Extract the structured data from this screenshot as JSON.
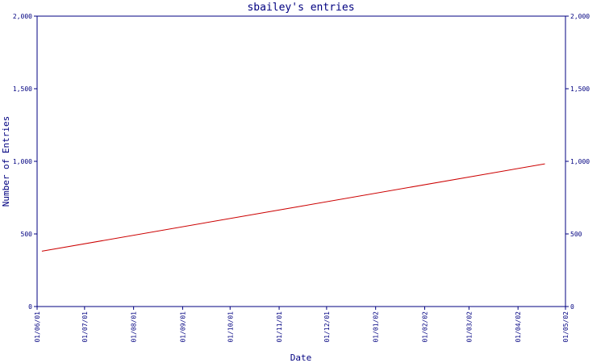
{
  "chart_data": {
    "type": "line",
    "title": "sbailey's entries",
    "xlabel": "Date",
    "ylabel": "Number of Entries",
    "x_ticks": [
      "01/06/01",
      "01/07/01",
      "01/08/01",
      "01/09/01",
      "01/10/01",
      "01/11/01",
      "01/12/01",
      "01/01/02",
      "01/02/02",
      "01/03/02",
      "01/04/02",
      "01/05/02"
    ],
    "y_ticks": [
      0,
      500,
      1000,
      1500,
      2000
    ],
    "y_tick_labels": [
      "0",
      "500",
      "1,000",
      "1,500",
      "2,000"
    ],
    "ylim": [
      0,
      2000
    ],
    "series": [
      {
        "color": "#cc0000",
        "points": [
          {
            "x": "2001-06-04",
            "y": 381
          },
          {
            "x": "2002-04-18",
            "y": 983
          }
        ]
      }
    ],
    "axis_color": "#000080",
    "grid": false,
    "right_axis_mirrors_left": true
  }
}
